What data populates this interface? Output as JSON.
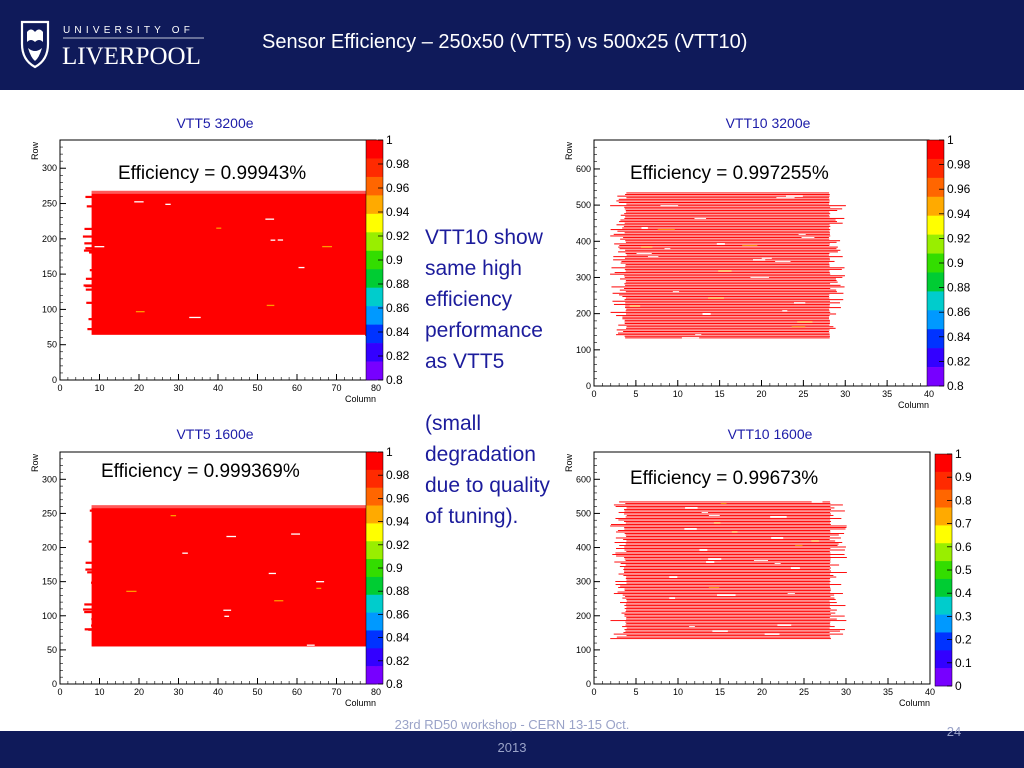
{
  "header": {
    "title": "Sensor Efficiency – 250x50 (VTT5) vs 500x25 (VTT10)",
    "logo_top": "UNIVERSITY OF",
    "logo_main": "LIVERPOOL"
  },
  "comment": {
    "lines": [
      "VTT10 show",
      "same high",
      "efficiency",
      "performance",
      "as VTT5"
    ],
    "lines2": [
      "(small",
      "degradation",
      "due to quality",
      "of tuning)."
    ]
  },
  "footer": {
    "line1": "23rd RD50 workshop - CERN 13-15 Oct.",
    "line2": "2013",
    "page": "24"
  },
  "colors": {
    "header_bg": "#0f1a5a",
    "title_blue": "#1c1ca8",
    "fill_red": "#ff0000"
  },
  "chart_data": [
    {
      "type": "heatmap",
      "title": "VTT5 3200e",
      "annotation": "Efficiency = 0.99943%",
      "xlabel": "Column",
      "ylabel": "Row",
      "xlim": [
        0,
        80
      ],
      "ylim": [
        0,
        340
      ],
      "xticks": [
        0,
        10,
        20,
        30,
        40,
        50,
        60,
        70,
        80
      ],
      "yticks": [
        0,
        50,
        100,
        150,
        200,
        250,
        300
      ],
      "colorbar": {
        "min": 0.8,
        "max": 1,
        "labels": [
          "1",
          "0.98",
          "0.96",
          "0.94",
          "0.92",
          "0.9",
          "0.88",
          "0.86",
          "0.84",
          "0.82",
          "0.8"
        ]
      },
      "filled_region": {
        "col": [
          8,
          78
        ],
        "row": [
          64,
          268
        ]
      }
    },
    {
      "type": "heatmap",
      "title": "VTT10 3200e",
      "annotation": "Efficiency = 0.997255%",
      "xlabel": "Column",
      "ylabel": "Row",
      "xlim": [
        0,
        40
      ],
      "ylim": [
        0,
        680
      ],
      "xticks": [
        0,
        5,
        10,
        15,
        20,
        25,
        30,
        35,
        40
      ],
      "yticks": [
        0,
        100,
        200,
        300,
        400,
        500,
        600
      ],
      "colorbar": {
        "min": 0.8,
        "max": 1,
        "labels": [
          "1",
          "0.98",
          "0.96",
          "0.94",
          "0.92",
          "0.9",
          "0.88",
          "0.86",
          "0.84",
          "0.82",
          "0.8"
        ]
      },
      "filled_region": {
        "col": [
          4,
          28
        ],
        "row": [
          130,
          535
        ]
      }
    },
    {
      "type": "heatmap",
      "title": "VTT5 1600e",
      "annotation": "Efficiency = 0.999369%",
      "xlabel": "Column",
      "ylabel": "Row",
      "xlim": [
        0,
        80
      ],
      "ylim": [
        0,
        340
      ],
      "xticks": [
        0,
        10,
        20,
        30,
        40,
        50,
        60,
        70,
        80
      ],
      "yticks": [
        0,
        50,
        100,
        150,
        200,
        250,
        300
      ],
      "colorbar": {
        "min": 0.8,
        "max": 1,
        "labels": [
          "1",
          "0.98",
          "0.96",
          "0.94",
          "0.92",
          "0.9",
          "0.88",
          "0.86",
          "0.84",
          "0.82",
          "0.8"
        ]
      },
      "filled_region": {
        "col": [
          8,
          78
        ],
        "row": [
          55,
          262
        ]
      }
    },
    {
      "type": "heatmap",
      "title": "VTT10 1600e",
      "annotation": "Efficiency = 0.99673%",
      "xlabel": "Column",
      "ylabel": "Row",
      "xlim": [
        0,
        40
      ],
      "ylim": [
        0,
        680
      ],
      "xticks": [
        0,
        5,
        10,
        15,
        20,
        25,
        30,
        35,
        40
      ],
      "yticks": [
        0,
        100,
        200,
        300,
        400,
        500,
        600
      ],
      "colorbar": {
        "min": 0,
        "max": 1,
        "labels": [
          "1",
          "0.9",
          "0.8",
          "0.7",
          "0.6",
          "0.5",
          "0.4",
          "0.3",
          "0.2",
          "0.1",
          "0"
        ]
      },
      "filled_region": {
        "col": [
          4,
          28
        ],
        "row": [
          130,
          535
        ]
      }
    }
  ]
}
